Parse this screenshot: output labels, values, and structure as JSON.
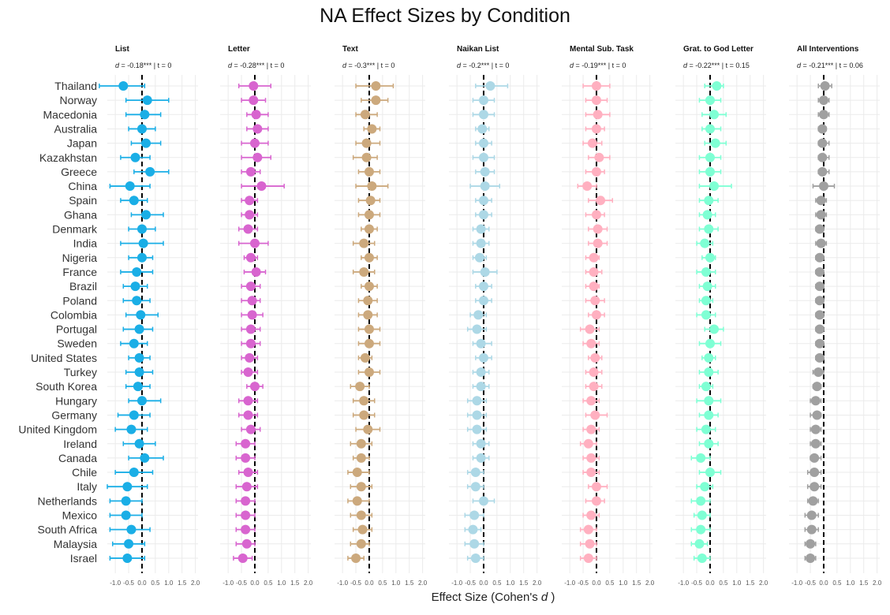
{
  "chart_data": {
    "type": "scatter",
    "subtype": "forest-plot-small-multiples",
    "title": "NA Effect Sizes by Condition",
    "xlabel_prefix": "Effect Size (Cohen's ",
    "xlabel_italic": "d",
    "xlabel_suffix": " )",
    "xlim": [
      -1.3,
      2.1
    ],
    "xticks": [
      "-1.0",
      "-0.5",
      "0.0",
      "0.5",
      "1.0",
      "1.5",
      "2.0"
    ],
    "xtick_values": [
      -1.0,
      -0.5,
      0.0,
      0.5,
      1.0,
      1.5,
      2.0
    ],
    "reference_line": 0,
    "grid": true,
    "countries": [
      "Thailand",
      "Norway",
      "Macedonia",
      "Australia",
      "Japan",
      "Kazakhstan",
      "Greece",
      "China",
      "Spain",
      "Ghana",
      "Denmark",
      "India",
      "Nigeria",
      "France",
      "Brazil",
      "Poland",
      "Colombia",
      "Portugal",
      "Sweden",
      "United States",
      "Turkey",
      "South Korea",
      "Hungary",
      "Germany",
      "United Kingdom",
      "Ireland",
      "Canada",
      "Chile",
      "Italy",
      "Netherlands",
      "Mexico",
      "South Africa",
      "Malaysia",
      "Israel"
    ],
    "panels": [
      {
        "name": "List",
        "stat_d": "-0.18***",
        "stat_t": "0",
        "color": "#1AAEE6",
        "values": [
          -0.7,
          0.2,
          0.1,
          0.0,
          0.15,
          -0.25,
          0.3,
          -0.45,
          -0.3,
          0.15,
          0.0,
          0.05,
          0.0,
          -0.2,
          -0.25,
          -0.2,
          -0.05,
          -0.1,
          -0.3,
          -0.1,
          -0.1,
          -0.15,
          0.0,
          -0.3,
          -0.4,
          -0.1,
          0.1,
          -0.3,
          -0.55,
          -0.6,
          -0.6,
          -0.4,
          -0.5,
          -0.55
        ],
        "lo": [
          -1.6,
          -0.6,
          -0.6,
          -0.5,
          -0.4,
          -0.8,
          -0.3,
          -1.2,
          -0.8,
          -0.4,
          -0.5,
          -0.8,
          -0.5,
          -0.8,
          -0.7,
          -0.7,
          -0.6,
          -0.7,
          -0.8,
          -0.5,
          -0.6,
          -0.6,
          -0.5,
          -0.9,
          -1.0,
          -0.7,
          -0.5,
          -1.0,
          -1.3,
          -1.2,
          -1.2,
          -1.2,
          -1.1,
          -1.2
        ],
        "hi": [
          0.1,
          1.0,
          0.7,
          0.5,
          0.7,
          0.3,
          1.0,
          0.3,
          0.2,
          0.8,
          0.5,
          0.8,
          0.4,
          0.4,
          0.2,
          0.3,
          0.6,
          0.4,
          0.2,
          0.3,
          0.4,
          0.3,
          0.7,
          0.3,
          0.2,
          0.5,
          0.8,
          0.4,
          0.2,
          0.0,
          0.0,
          0.3,
          0.1,
          0.1
        ]
      },
      {
        "name": "Letter",
        "stat_d": "-0.28***",
        "stat_t": "0",
        "color": "#D865CF",
        "values": [
          -0.05,
          -0.05,
          0.05,
          0.1,
          0.0,
          0.1,
          -0.15,
          0.25,
          -0.2,
          -0.2,
          -0.25,
          0.0,
          -0.15,
          0.05,
          -0.15,
          -0.1,
          -0.1,
          -0.15,
          -0.15,
          -0.2,
          -0.25,
          0.0,
          -0.25,
          -0.25,
          -0.15,
          -0.35,
          -0.35,
          -0.25,
          -0.3,
          -0.35,
          -0.35,
          -0.35,
          -0.3,
          -0.45
        ],
        "lo": [
          -0.6,
          -0.5,
          -0.3,
          -0.3,
          -0.5,
          -0.5,
          -0.5,
          -0.5,
          -0.5,
          -0.5,
          -0.6,
          -0.6,
          -0.4,
          -0.4,
          -0.5,
          -0.5,
          -0.5,
          -0.5,
          -0.5,
          -0.5,
          -0.5,
          -0.3,
          -0.6,
          -0.6,
          -0.5,
          -0.7,
          -0.7,
          -0.6,
          -0.7,
          -0.7,
          -0.7,
          -0.7,
          -0.7,
          -0.8
        ],
        "hi": [
          0.6,
          0.4,
          0.5,
          0.5,
          0.5,
          0.6,
          0.2,
          1.1,
          0.1,
          0.1,
          0.1,
          0.5,
          0.1,
          0.4,
          0.2,
          0.2,
          0.3,
          0.2,
          0.2,
          0.1,
          0.1,
          0.3,
          0.1,
          0.1,
          0.2,
          0.0,
          0.0,
          0.1,
          0.1,
          0.0,
          0.0,
          0.0,
          0.0,
          -0.1
        ]
      },
      {
        "name": "Text",
        "stat_d": "-0.3***",
        "stat_t": "0",
        "color": "#CCA97D",
        "values": [
          0.25,
          0.25,
          -0.15,
          0.1,
          -0.1,
          -0.1,
          0.0,
          0.1,
          0.05,
          0.0,
          0.0,
          -0.2,
          0.0,
          -0.2,
          0.0,
          -0.05,
          -0.05,
          0.0,
          0.0,
          -0.15,
          0.0,
          -0.35,
          -0.2,
          -0.2,
          -0.05,
          -0.3,
          -0.3,
          -0.45,
          -0.3,
          -0.45,
          -0.3,
          -0.25,
          -0.3,
          -0.5
        ],
        "lo": [
          -0.5,
          -0.3,
          -0.5,
          -0.2,
          -0.5,
          -0.6,
          -0.4,
          -0.5,
          -0.4,
          -0.4,
          -0.3,
          -0.6,
          -0.3,
          -0.6,
          -0.3,
          -0.4,
          -0.4,
          -0.4,
          -0.4,
          -0.4,
          -0.4,
          -0.7,
          -0.6,
          -0.6,
          -0.5,
          -0.7,
          -0.6,
          -0.8,
          -0.7,
          -0.8,
          -0.7,
          -0.6,
          -0.7,
          -0.8
        ],
        "hi": [
          0.9,
          0.7,
          0.3,
          0.4,
          0.4,
          0.3,
          0.4,
          0.7,
          0.4,
          0.4,
          0.3,
          0.2,
          0.3,
          0.2,
          0.3,
          0.3,
          0.3,
          0.4,
          0.4,
          0.1,
          0.4,
          0.0,
          0.2,
          0.2,
          0.4,
          0.1,
          0.0,
          0.0,
          0.1,
          0.0,
          0.1,
          0.1,
          0.0,
          -0.2
        ]
      },
      {
        "name": "Naikan List",
        "stat_d": "-0.2***",
        "stat_t": "0",
        "color": "#ADD8E6",
        "values": [
          0.25,
          0.0,
          0.0,
          -0.05,
          0.0,
          0.0,
          0.05,
          0.05,
          0.0,
          0.0,
          -0.1,
          -0.1,
          -0.15,
          0.05,
          0.0,
          0.0,
          -0.2,
          -0.25,
          -0.1,
          0.0,
          -0.1,
          -0.1,
          -0.25,
          -0.25,
          -0.25,
          -0.1,
          -0.1,
          -0.3,
          -0.3,
          0.0,
          -0.35,
          -0.4,
          -0.35,
          -0.3
        ],
        "lo": [
          -0.3,
          -0.4,
          -0.4,
          -0.3,
          -0.3,
          -0.4,
          -0.3,
          -0.5,
          -0.3,
          -0.3,
          -0.4,
          -0.4,
          -0.4,
          -0.4,
          -0.3,
          -0.3,
          -0.5,
          -0.6,
          -0.4,
          -0.3,
          -0.4,
          -0.4,
          -0.6,
          -0.6,
          -0.6,
          -0.4,
          -0.4,
          -0.6,
          -0.6,
          -0.4,
          -0.7,
          -0.7,
          -0.7,
          -0.6
        ],
        "hi": [
          0.9,
          0.4,
          0.4,
          0.2,
          0.3,
          0.4,
          0.4,
          0.6,
          0.3,
          0.3,
          0.2,
          0.2,
          0.1,
          0.5,
          0.3,
          0.3,
          0.1,
          0.1,
          0.3,
          0.3,
          0.2,
          0.2,
          0.1,
          0.1,
          0.1,
          0.2,
          0.2,
          0.0,
          0.0,
          0.4,
          0.0,
          -0.1,
          0.0,
          0.0
        ]
      },
      {
        "name": "Mental Sub. Task",
        "stat_d": "-0.19***",
        "stat_t": "0",
        "color": "#FFB0C0",
        "values": [
          0.0,
          0.0,
          0.05,
          0.0,
          -0.15,
          0.1,
          0.0,
          -0.35,
          0.15,
          0.0,
          0.05,
          0.05,
          -0.1,
          -0.1,
          -0.1,
          -0.05,
          0.0,
          -0.25,
          -0.2,
          -0.05,
          -0.1,
          -0.1,
          -0.2,
          -0.05,
          -0.2,
          -0.3,
          -0.2,
          -0.2,
          0.0,
          0.0,
          -0.2,
          -0.3,
          -0.25,
          -0.3
        ],
        "lo": [
          -0.5,
          -0.4,
          -0.4,
          -0.4,
          -0.5,
          -0.3,
          -0.4,
          -0.7,
          -0.3,
          -0.4,
          -0.3,
          -0.3,
          -0.4,
          -0.4,
          -0.4,
          -0.4,
          -0.3,
          -0.6,
          -0.5,
          -0.3,
          -0.4,
          -0.4,
          -0.5,
          -0.4,
          -0.5,
          -0.6,
          -0.5,
          -0.5,
          -0.3,
          -0.4,
          -0.5,
          -0.6,
          -0.6,
          -0.6
        ],
        "hi": [
          0.5,
          0.4,
          0.5,
          0.3,
          0.2,
          0.5,
          0.3,
          0.0,
          0.6,
          0.3,
          0.4,
          0.4,
          0.1,
          0.2,
          0.1,
          0.3,
          0.3,
          0.1,
          0.1,
          0.2,
          0.2,
          0.2,
          0.1,
          0.4,
          0.1,
          0.0,
          0.1,
          0.1,
          0.4,
          0.3,
          0.1,
          0.0,
          0.0,
          0.0
        ]
      },
      {
        "name": "Grat. to God Letter",
        "stat_d": "-0.22***",
        "stat_t": "0.15",
        "color": "#7FFFD4",
        "values": [
          0.25,
          0.0,
          0.15,
          0.0,
          0.2,
          0.0,
          0.0,
          0.15,
          -0.05,
          -0.1,
          -0.05,
          -0.2,
          0.0,
          -0.15,
          -0.1,
          -0.15,
          -0.15,
          0.15,
          0.0,
          -0.05,
          -0.05,
          -0.15,
          -0.05,
          -0.05,
          -0.15,
          -0.05,
          -0.35,
          0.0,
          -0.2,
          -0.35,
          -0.3,
          -0.35,
          -0.4,
          -0.3
        ],
        "lo": [
          -0.2,
          -0.4,
          -0.3,
          -0.3,
          -0.2,
          -0.4,
          -0.4,
          -0.4,
          -0.4,
          -0.4,
          -0.4,
          -0.5,
          -0.3,
          -0.5,
          -0.4,
          -0.4,
          -0.5,
          -0.2,
          -0.4,
          -0.3,
          -0.4,
          -0.4,
          -0.5,
          -0.4,
          -0.5,
          -0.4,
          -0.7,
          -0.4,
          -0.5,
          -0.7,
          -0.6,
          -0.7,
          -0.7,
          -0.6
        ],
        "hi": [
          0.5,
          0.4,
          0.6,
          0.4,
          0.6,
          0.4,
          0.4,
          0.8,
          0.3,
          0.2,
          0.3,
          0.1,
          0.2,
          0.2,
          0.2,
          0.1,
          0.2,
          0.5,
          0.4,
          0.2,
          0.3,
          0.1,
          0.4,
          0.3,
          0.2,
          0.3,
          0.0,
          0.4,
          0.1,
          0.0,
          0.0,
          0.0,
          -0.1,
          0.0
        ]
      },
      {
        "name": "All Interventions",
        "stat_d": "-0.21***",
        "stat_t": "0.06",
        "color": "#A0A0A0",
        "values": [
          0.05,
          0.0,
          0.0,
          -0.05,
          -0.05,
          -0.05,
          -0.05,
          0.0,
          -0.1,
          -0.1,
          -0.15,
          -0.1,
          -0.15,
          -0.15,
          -0.15,
          -0.15,
          -0.15,
          -0.15,
          -0.15,
          -0.15,
          -0.2,
          -0.25,
          -0.3,
          -0.25,
          -0.3,
          -0.3,
          -0.35,
          -0.35,
          -0.35,
          -0.4,
          -0.45,
          -0.45,
          -0.5,
          -0.5
        ],
        "lo": [
          -0.2,
          -0.2,
          -0.2,
          -0.2,
          -0.2,
          -0.2,
          -0.2,
          -0.4,
          -0.3,
          -0.3,
          -0.3,
          -0.3,
          -0.3,
          -0.3,
          -0.3,
          -0.3,
          -0.3,
          -0.3,
          -0.3,
          -0.3,
          -0.4,
          -0.4,
          -0.5,
          -0.5,
          -0.5,
          -0.5,
          -0.5,
          -0.6,
          -0.6,
          -0.6,
          -0.7,
          -0.7,
          -0.7,
          -0.7
        ],
        "hi": [
          0.3,
          0.2,
          0.2,
          0.1,
          0.2,
          0.2,
          0.2,
          0.4,
          0.1,
          0.1,
          0.0,
          0.1,
          0.0,
          0.0,
          0.0,
          0.0,
          0.0,
          0.0,
          0.0,
          0.0,
          0.0,
          -0.1,
          -0.1,
          -0.1,
          -0.1,
          -0.1,
          -0.1,
          -0.1,
          -0.1,
          -0.2,
          -0.2,
          -0.2,
          -0.3,
          -0.3
        ]
      }
    ]
  }
}
